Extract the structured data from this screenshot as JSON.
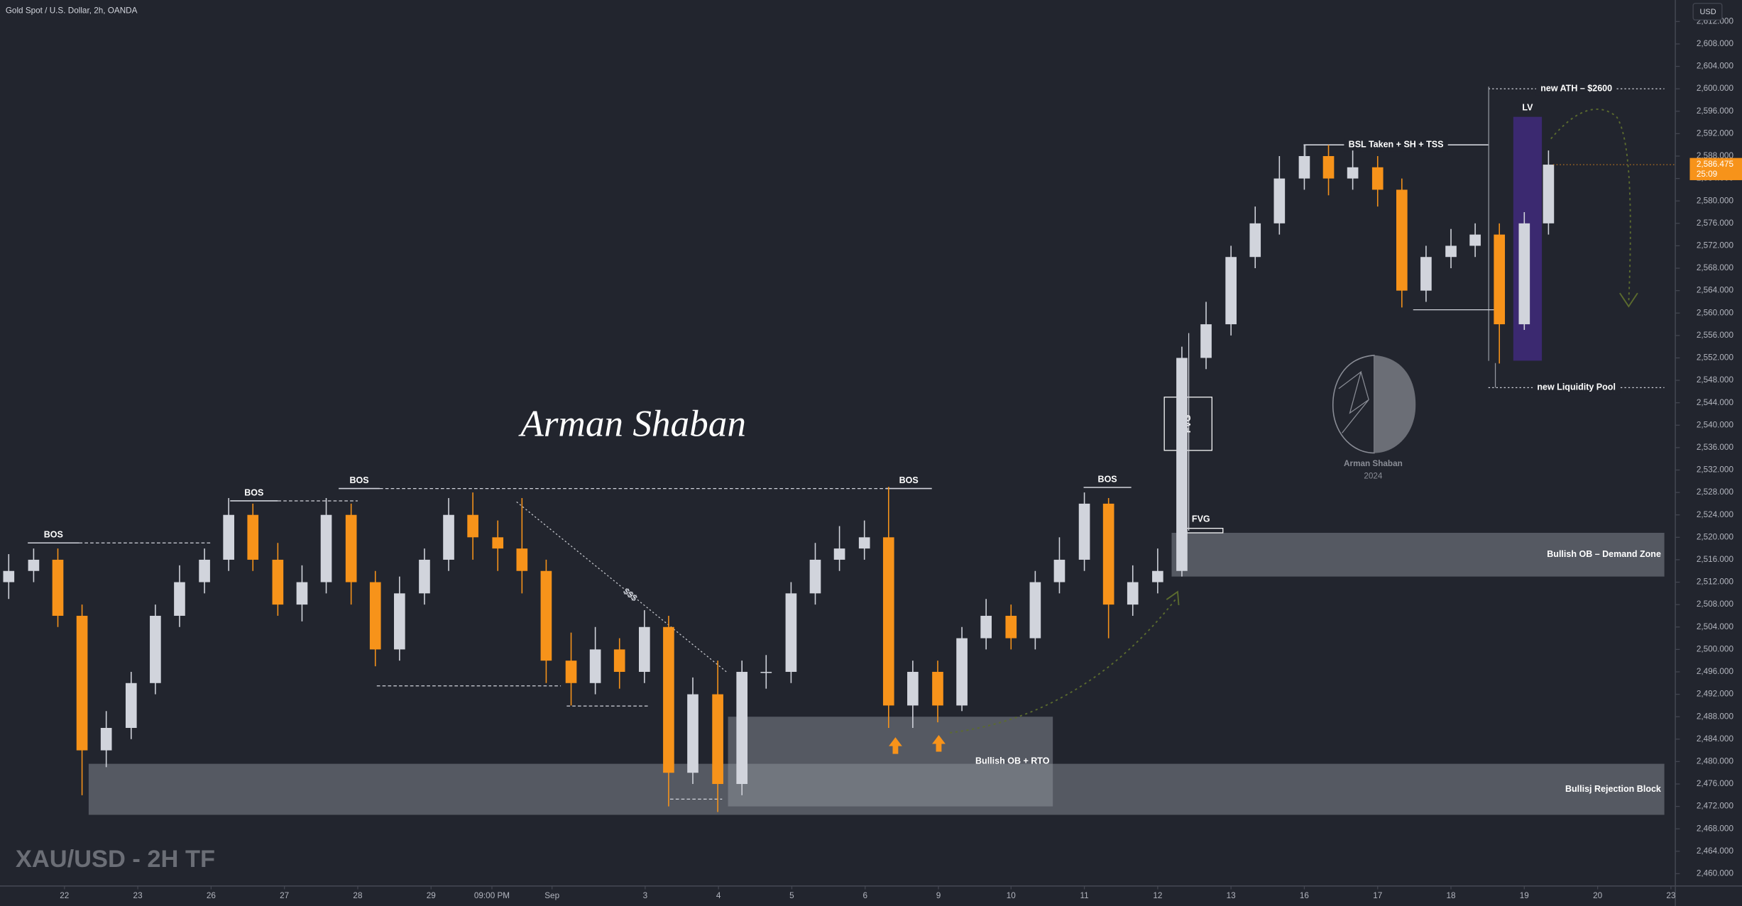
{
  "chart_data": {
    "type": "candlestick",
    "title": "Gold Spot / U.S. Dollar, 2h, OANDA",
    "currency": "USD",
    "watermark": "XAU/USD - 2H TF",
    "signature": "Arman Shaban",
    "logo_text": [
      "Arman Shaban",
      "2024"
    ],
    "sweep_label": "$$$",
    "up_color": "#d1d4dc",
    "down_color": "#f7931a",
    "x": [
      -0.76,
      -0.42,
      -0.09,
      0.24,
      0.57,
      0.91,
      1.24,
      1.57,
      1.91,
      2.24,
      2.57,
      2.91,
      3.24,
      3.57,
      3.91,
      4.24,
      4.57,
      4.91,
      5.24,
      5.57,
      5.91,
      6.24,
      6.57,
      6.91,
      7.24,
      7.57,
      7.91,
      8.24,
      8.57,
      8.91,
      9.24,
      9.57,
      9.91,
      10.24,
      10.57,
      10.91,
      11.24,
      11.57,
      11.91,
      12.24,
      12.57,
      12.91,
      13.24,
      13.57,
      13.91,
      14.24,
      14.57,
      14.91,
      15.24,
      15.57,
      15.91,
      16.24,
      16.57,
      16.91,
      17.24,
      17.57,
      17.91,
      18.24,
      18.57,
      18.91,
      19.24,
      19.57,
      19.91,
      20.24
    ],
    "open": [
      2512,
      2514,
      2516,
      2506,
      2482,
      2486,
      2494,
      2506,
      2512,
      2516,
      2524,
      2516,
      2508,
      2512,
      2524,
      2512,
      2500,
      2510,
      2516,
      2524,
      2520,
      2518,
      2514,
      2498,
      2494,
      2500,
      2496,
      2504,
      2478,
      2492,
      2476,
      2496,
      2496,
      2510,
      2516,
      2518,
      2520,
      2490,
      2496,
      2490,
      2502,
      2506,
      2502,
      2512,
      2516,
      2526,
      2508,
      2512,
      2514,
      2552,
      2558,
      2570,
      2576,
      2584,
      2588,
      2584,
      2586,
      2582,
      2564,
      2570,
      2572,
      2574,
      2558,
      2576
    ],
    "high": [
      2517,
      2518,
      2518,
      2508,
      2489,
      2496,
      2508,
      2515,
      2518,
      2527,
      2526,
      2519,
      2515,
      2527,
      2526,
      2514,
      2513,
      2518,
      2527,
      2528,
      2523,
      2527,
      2516,
      2503,
      2504,
      2502,
      2507,
      2506,
      2495,
      2498,
      2498,
      2499,
      2512,
      2519,
      2522,
      2523,
      2529,
      2498,
      2498,
      2504,
      2509,
      2508,
      2514,
      2520,
      2528,
      2527,
      2515,
      2518,
      2554,
      2562,
      2572,
      2579,
      2588,
      2590,
      2590,
      2589,
      2588,
      2584,
      2572,
      2575,
      2576,
      2576,
      2578,
      2589
    ],
    "low": [
      2509,
      2512,
      2504,
      2474,
      2479,
      2484,
      2492,
      2504,
      2510,
      2514,
      2514,
      2506,
      2505,
      2510,
      2508,
      2497,
      2498,
      2508,
      2514,
      2516,
      2514,
      2510,
      2494,
      2490,
      2492,
      2493,
      2494,
      2472,
      2476,
      2471,
      2474,
      2493,
      2494,
      2508,
      2514,
      2516,
      2486,
      2486,
      2487,
      2489,
      2500,
      2500,
      2500,
      2510,
      2514,
      2502,
      2506,
      2510,
      2513,
      2550,
      2556,
      2568,
      2574,
      2582,
      2581,
      2582,
      2579,
      2561,
      2562,
      2568,
      2570,
      2551,
      2557,
      2574
    ],
    "close": [
      2514,
      2516,
      2506,
      2482,
      2486,
      2494,
      2506,
      2512,
      2516,
      2524,
      2516,
      2508,
      2512,
      2524,
      2512,
      2500,
      2510,
      2516,
      2524,
      2520,
      2518,
      2514,
      2498,
      2494,
      2500,
      2496,
      2504,
      2478,
      2492,
      2476,
      2496,
      2496,
      2510,
      2516,
      2518,
      2520,
      2490,
      2496,
      2490,
      2502,
      2506,
      2502,
      2512,
      2516,
      2526,
      2508,
      2512,
      2514,
      2552,
      2558,
      2570,
      2576,
      2584,
      2588,
      2584,
      2586,
      2582,
      2564,
      2570,
      2572,
      2574,
      2558,
      2576,
      2586.475
    ],
    "last_price": {
      "value": 2586.475,
      "label": "2,586.475"
    },
    "countdown": "25:09",
    "xlim": [
      -0.879,
      21.97
    ],
    "ylim": [
      2457.8,
      2615.84
    ],
    "xticks": [
      {
        "value": 0,
        "label": "22"
      },
      {
        "value": 1,
        "label": "23"
      },
      {
        "value": 2,
        "label": "26"
      },
      {
        "value": 3,
        "label": "27"
      },
      {
        "value": 4,
        "label": "28"
      },
      {
        "value": 5,
        "label": "29"
      },
      {
        "value": 5.83,
        "label": "09:00 PM"
      },
      {
        "value": 6.65,
        "label": "Sep"
      },
      {
        "value": 7.92,
        "label": "3"
      },
      {
        "value": 8.92,
        "label": "4"
      },
      {
        "value": 9.92,
        "label": "5"
      },
      {
        "value": 10.92,
        "label": "6"
      },
      {
        "value": 11.92,
        "label": "9"
      },
      {
        "value": 12.91,
        "label": "10"
      },
      {
        "value": 13.91,
        "label": "11"
      },
      {
        "value": 14.91,
        "label": "12"
      },
      {
        "value": 15.91,
        "label": "13"
      },
      {
        "value": 16.91,
        "label": "16"
      },
      {
        "value": 17.91,
        "label": "17"
      },
      {
        "value": 18.91,
        "label": "18"
      },
      {
        "value": 19.91,
        "label": "19"
      },
      {
        "value": 20.91,
        "label": "20"
      },
      {
        "value": 21.91,
        "label": "23"
      }
    ],
    "yticks": [
      {
        "value": 2460,
        "label": "2,460.000"
      },
      {
        "value": 2464,
        "label": "2,464.000"
      },
      {
        "value": 2468,
        "label": "2,468.000"
      },
      {
        "value": 2472,
        "label": "2,472.000"
      },
      {
        "value": 2476,
        "label": "2,476.000"
      },
      {
        "value": 2480,
        "label": "2,480.000"
      },
      {
        "value": 2484,
        "label": "2,484.000"
      },
      {
        "value": 2488,
        "label": "2,488.000"
      },
      {
        "value": 2492,
        "label": "2,492.000"
      },
      {
        "value": 2496,
        "label": "2,496.000"
      },
      {
        "value": 2500,
        "label": "2,500.000"
      },
      {
        "value": 2504,
        "label": "2,504.000"
      },
      {
        "value": 2508,
        "label": "2,508.000"
      },
      {
        "value": 2512,
        "label": "2,512.000"
      },
      {
        "value": 2516,
        "label": "2,516.000"
      },
      {
        "value": 2520,
        "label": "2,520.000"
      },
      {
        "value": 2524,
        "label": "2,524.000"
      },
      {
        "value": 2528,
        "label": "2,528.000"
      },
      {
        "value": 2532,
        "label": "2,532.000"
      },
      {
        "value": 2536,
        "label": "2,536.000"
      },
      {
        "value": 2540,
        "label": "2,540.000"
      },
      {
        "value": 2544,
        "label": "2,544.000"
      },
      {
        "value": 2548,
        "label": "2,548.000"
      },
      {
        "value": 2552,
        "label": "2,552.000"
      },
      {
        "value": 2556,
        "label": "2,556.000"
      },
      {
        "value": 2560,
        "label": "2,560.000"
      },
      {
        "value": 2564,
        "label": "2,564.000"
      },
      {
        "value": 2568,
        "label": "2,568.000"
      },
      {
        "value": 2572,
        "label": "2,572.000"
      },
      {
        "value": 2576,
        "label": "2,576.000"
      },
      {
        "value": 2580,
        "label": "2,580.000"
      },
      {
        "value": 2584,
        "label": "2,584.000"
      },
      {
        "value": 2588,
        "label": "2,588.000"
      },
      {
        "value": 2592,
        "label": "2,592.000"
      },
      {
        "value": 2596,
        "label": "2,596.000"
      },
      {
        "value": 2600,
        "label": "2,600.000"
      },
      {
        "value": 2604,
        "label": "2,604.000"
      },
      {
        "value": 2608,
        "label": "2,608.000"
      },
      {
        "value": 2612,
        "label": "2,612.000"
      }
    ],
    "zones": [
      {
        "label": "Bullisj Rejection Block",
        "x": [
          0.33,
          21.82
        ],
        "y": [
          2470.5,
          2479.6
        ],
        "color": "#9598a1",
        "style": "fill",
        "label_pos": "right"
      },
      {
        "label": "Bullish OB + RTO",
        "x": [
          9.05,
          13.48
        ],
        "y": [
          2472,
          2488
        ],
        "color": "#9598a1",
        "style": "fill",
        "label_pos": "right"
      },
      {
        "label": "Bullish OB – Demand Zone",
        "x": [
          15.1,
          21.82
        ],
        "y": [
          2513,
          2520.8
        ],
        "color": "#9598a1",
        "style": "fill",
        "label_pos": "right"
      },
      {
        "label": "LV",
        "x": [
          19.76,
          20.15
        ],
        "y": [
          2551.5,
          2595
        ],
        "color": "#5b2fc0",
        "style": "fill",
        "label_pos": "above"
      },
      {
        "label": "FVG",
        "x": [
          15.0,
          15.65
        ],
        "y": [
          2535.5,
          2545
        ],
        "color": "#ffffff",
        "style": "outline",
        "label_pos": "vertical"
      },
      {
        "label": "FVG",
        "x": [
          15.2,
          15.8
        ],
        "y": [
          2520.8,
          2521.6
        ],
        "color": "#ffffff",
        "style": "outline",
        "label_pos": "above"
      }
    ],
    "levels": [
      {
        "label": "new ATH – $2600",
        "y": 2600,
        "x": [
          19.42,
          21.82
        ],
        "style": "dotted",
        "label_pos": "inline"
      },
      {
        "label": "new Liquidity Pool",
        "y": 2546.7,
        "x": [
          19.42,
          21.82
        ],
        "style": "dotted",
        "label_pos": "inline"
      },
      {
        "label": "BSL Taken + SH + TSS",
        "y": 2590,
        "x": [
          16.9,
          19.42
        ],
        "style": "solid",
        "label_pos": "inline"
      },
      {
        "label": "BOS",
        "y": 2519,
        "x": [
          -0.5,
          0.2
        ],
        "style": "solid",
        "label_pos": "above"
      },
      {
        "y": 2519,
        "x": [
          0.2,
          2.0
        ],
        "style": "dashed"
      },
      {
        "label": "BOS",
        "y": 2526.5,
        "x": [
          2.26,
          2.91
        ],
        "style": "solid",
        "label_pos": "above"
      },
      {
        "y": 2526.5,
        "x": [
          2.91,
          4.0
        ],
        "style": "dashed"
      },
      {
        "label": "BOS",
        "y": 2528.7,
        "x": [
          3.74,
          4.3
        ],
        "style": "solid",
        "label_pos": "above"
      },
      {
        "y": 2528.7,
        "x": [
          4.3,
          11.2
        ],
        "style": "dashed"
      },
      {
        "label": "BOS",
        "y": 2528.7,
        "x": [
          11.2,
          11.83
        ],
        "style": "solid",
        "label_pos": "above"
      },
      {
        "label": "BOS",
        "y": 2528.9,
        "x": [
          13.9,
          14.55
        ],
        "style": "solid",
        "label_pos": "above"
      },
      {
        "y": 2493.5,
        "x": [
          4.26,
          6.77
        ],
        "style": "dashed"
      },
      {
        "y": 2489.9,
        "x": [
          6.85,
          7.98
        ],
        "style": "dashed"
      },
      {
        "y": 2473.3,
        "x": [
          8.26,
          8.97
        ],
        "style": "dashed"
      }
    ]
  }
}
